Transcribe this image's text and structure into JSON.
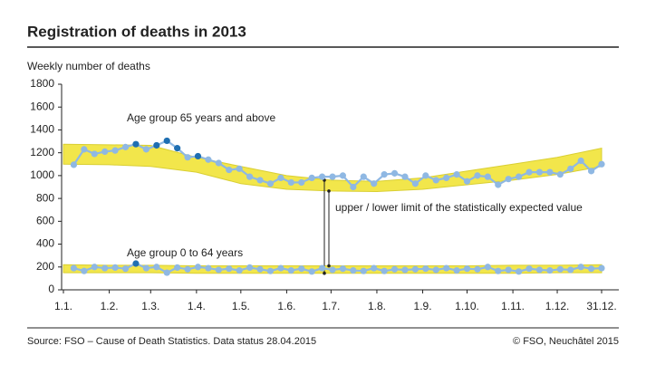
{
  "chart_data": {
    "type": "line",
    "title": "Registration of deaths in 2013",
    "subtitle": "Weekly number of deaths",
    "x": [
      7,
      14,
      21,
      28,
      35,
      42,
      49,
      56,
      63,
      70,
      77,
      84,
      91,
      98,
      105,
      112,
      119,
      126,
      133,
      140,
      147,
      154,
      161,
      168,
      175,
      182,
      189,
      196,
      203,
      210,
      217,
      224,
      231,
      238,
      245,
      252,
      259,
      266,
      273,
      280,
      287,
      294,
      301,
      308,
      315,
      322,
      329,
      336,
      343,
      350,
      357,
      364
    ],
    "xlim": [
      0,
      364
    ],
    "xticks": [
      {
        "value": 0,
        "label": "1.1."
      },
      {
        "value": 31,
        "label": "1.2."
      },
      {
        "value": 59,
        "label": "1.3."
      },
      {
        "value": 90,
        "label": "1.4."
      },
      {
        "value": 120,
        "label": "1.5."
      },
      {
        "value": 151,
        "label": "1.6."
      },
      {
        "value": 181,
        "label": "1.7."
      },
      {
        "value": 212,
        "label": "1.8."
      },
      {
        "value": 243,
        "label": "1.9."
      },
      {
        "value": 273,
        "label": "1.10."
      },
      {
        "value": 304,
        "label": "1.11."
      },
      {
        "value": 334,
        "label": "1.12."
      },
      {
        "value": 364,
        "label": "31.12."
      }
    ],
    "ylim": [
      0,
      1800
    ],
    "yticks": [
      0,
      200,
      400,
      600,
      800,
      1000,
      1200,
      1400,
      1600,
      1800
    ],
    "series": [
      {
        "name": "Age group 65 years and above",
        "color": "#8fb8e3",
        "values": [
          1095,
          1230,
          1190,
          1210,
          1220,
          1250,
          1275,
          1230,
          1265,
          1305,
          1240,
          1160,
          1170,
          1140,
          1110,
          1050,
          1060,
          990,
          960,
          930,
          980,
          940,
          940,
          980,
          990,
          990,
          1000,
          900,
          990,
          930,
          1010,
          1020,
          990,
          930,
          1000,
          960,
          980,
          1010,
          950,
          1000,
          990,
          920,
          970,
          990,
          1030,
          1030,
          1030,
          1010,
          1060,
          1130,
          1040,
          1100
        ],
        "marker_colors": [
          "#8fb8e3",
          "#8fb8e3",
          "#8fb8e3",
          "#8fb8e3",
          "#8fb8e3",
          "#8fb8e3",
          "#1f6fb2",
          "#8fb8e3",
          "#1f6fb2",
          "#1f6fb2",
          "#1f6fb2",
          "#8fb8e3",
          "#1f6fb2",
          "#8fb8e3",
          "#8fb8e3",
          "#8fb8e3",
          "#8fb8e3",
          "#8fb8e3",
          "#8fb8e3",
          "#8fb8e3",
          "#8fb8e3",
          "#8fb8e3",
          "#8fb8e3",
          "#8fb8e3",
          "#8fb8e3",
          "#8fb8e3",
          "#8fb8e3",
          "#8fb8e3",
          "#8fb8e3",
          "#8fb8e3",
          "#8fb8e3",
          "#8fb8e3",
          "#8fb8e3",
          "#8fb8e3",
          "#8fb8e3",
          "#8fb8e3",
          "#8fb8e3",
          "#8fb8e3",
          "#8fb8e3",
          "#8fb8e3",
          "#8fb8e3",
          "#8fb8e3",
          "#8fb8e3",
          "#8fb8e3",
          "#8fb8e3",
          "#8fb8e3",
          "#8fb8e3",
          "#8fb8e3",
          "#8fb8e3",
          "#8fb8e3",
          "#8fb8e3",
          "#8fb8e3"
        ]
      },
      {
        "name": "Age group 0 to 64 years",
        "color": "#8fb8e3",
        "values": [
          190,
          165,
          200,
          190,
          195,
          185,
          230,
          190,
          200,
          150,
          195,
          180,
          200,
          190,
          175,
          185,
          170,
          195,
          180,
          165,
          190,
          170,
          185,
          160,
          190,
          175,
          185,
          170,
          165,
          190,
          165,
          180,
          175,
          180,
          185,
          175,
          190,
          170,
          185,
          180,
          200,
          165,
          175,
          160,
          185,
          175,
          170,
          180,
          175,
          200,
          185,
          190
        ],
        "marker_colors": [
          "#8fb8e3",
          "#8fb8e3",
          "#8fb8e3",
          "#8fb8e3",
          "#8fb8e3",
          "#8fb8e3",
          "#1f6fb2",
          "#8fb8e3",
          "#8fb8e3",
          "#8fb8e3",
          "#8fb8e3",
          "#8fb8e3",
          "#8fb8e3",
          "#8fb8e3",
          "#8fb8e3",
          "#8fb8e3",
          "#8fb8e3",
          "#8fb8e3",
          "#8fb8e3",
          "#8fb8e3",
          "#8fb8e3",
          "#8fb8e3",
          "#8fb8e3",
          "#8fb8e3",
          "#8fb8e3",
          "#8fb8e3",
          "#8fb8e3",
          "#8fb8e3",
          "#8fb8e3",
          "#8fb8e3",
          "#8fb8e3",
          "#8fb8e3",
          "#8fb8e3",
          "#8fb8e3",
          "#8fb8e3",
          "#8fb8e3",
          "#8fb8e3",
          "#8fb8e3",
          "#8fb8e3",
          "#8fb8e3",
          "#8fb8e3",
          "#8fb8e3",
          "#8fb8e3",
          "#8fb8e3",
          "#8fb8e3",
          "#8fb8e3",
          "#8fb8e3",
          "#8fb8e3",
          "#8fb8e3",
          "#8fb8e3",
          "#8fb8e3",
          "#8fb8e3"
        ]
      }
    ],
    "bands": [
      {
        "color": "#f2e64b",
        "x": [
          0,
          31,
          59,
          90,
          120,
          151,
          181,
          212,
          243,
          273,
          304,
          334,
          364
        ],
        "upper": [
          1275,
          1270,
          1265,
          1160,
          1080,
          1000,
          960,
          950,
          980,
          1040,
          1100,
          1160,
          1240
        ],
        "lower": [
          1100,
          1095,
          1080,
          1030,
          930,
          880,
          865,
          860,
          880,
          920,
          960,
          1010,
          1080
        ]
      },
      {
        "color": "#f2e64b",
        "x": [
          0,
          31,
          59,
          90,
          120,
          151,
          181,
          212,
          243,
          273,
          304,
          334,
          364
        ],
        "upper": [
          220,
          215,
          215,
          210,
          210,
          210,
          210,
          210,
          210,
          210,
          215,
          215,
          220
        ],
        "lower": [
          150,
          150,
          150,
          145,
          145,
          145,
          145,
          145,
          145,
          145,
          145,
          150,
          150
        ]
      }
    ],
    "annotation": "upper / lower limit of the statistically expected value",
    "source": "Source: FSO – Cause of Death Statistics. Data status 28.04.2015",
    "copyright": "© FSO, Neuchâtel 2015"
  }
}
